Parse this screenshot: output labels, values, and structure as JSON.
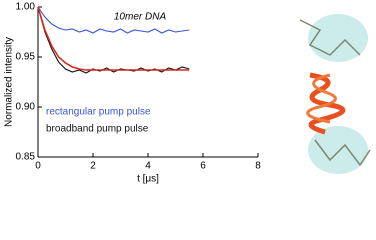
{
  "chart_data": {
    "type": "line",
    "title": "10mer DNA",
    "x_label": "t [μs]",
    "y_label": "Normalized intensity",
    "x": [
      0,
      0.25,
      0.5,
      0.75,
      1,
      1.25,
      1.5,
      1.75,
      2,
      2.25,
      2.5,
      2.75,
      3,
      3.25,
      3.5,
      3.75,
      4,
      4.25,
      4.5,
      4.75,
      5,
      5.25,
      5.5
    ],
    "series": [
      {
        "name": "rectangular pump pulse",
        "color": "#3a55d9",
        "values": [
          1.0,
          0.99,
          0.983,
          0.979,
          0.977,
          0.978,
          0.975,
          0.977,
          0.974,
          0.978,
          0.976,
          0.975,
          0.978,
          0.974,
          0.977,
          0.976,
          0.975,
          0.978,
          0.974,
          0.977,
          0.975,
          0.976,
          0.977
        ]
      },
      {
        "name": "broadband pump pulse",
        "color": "#111111",
        "values": [
          1.0,
          0.975,
          0.958,
          0.945,
          0.938,
          0.935,
          0.937,
          0.934,
          0.938,
          0.936,
          0.939,
          0.935,
          0.938,
          0.937,
          0.936,
          0.939,
          0.936,
          0.938,
          0.935,
          0.939,
          0.937,
          0.94,
          0.938
        ]
      },
      {
        "color": "#d62a1e",
        "values": [
          1.0,
          0.977,
          0.961,
          0.95,
          0.944,
          0.94,
          0.938,
          0.937,
          0.937,
          0.937,
          0.937,
          0.937,
          0.937,
          0.937,
          0.937,
          0.937,
          0.937,
          0.937,
          0.937,
          0.937,
          0.937,
          0.937,
          0.937
        ]
      }
    ],
    "xlim": [
      0,
      8
    ],
    "xticks": [
      0,
      2,
      4,
      6,
      8
    ],
    "ylim": [
      0.85,
      1.0
    ],
    "yticks": [
      0.85,
      {
        "value": 0.9,
        "label": "0.90"
      },
      0.95,
      {
        "value": 1.0,
        "label": "1.00"
      }
    ]
  }
}
